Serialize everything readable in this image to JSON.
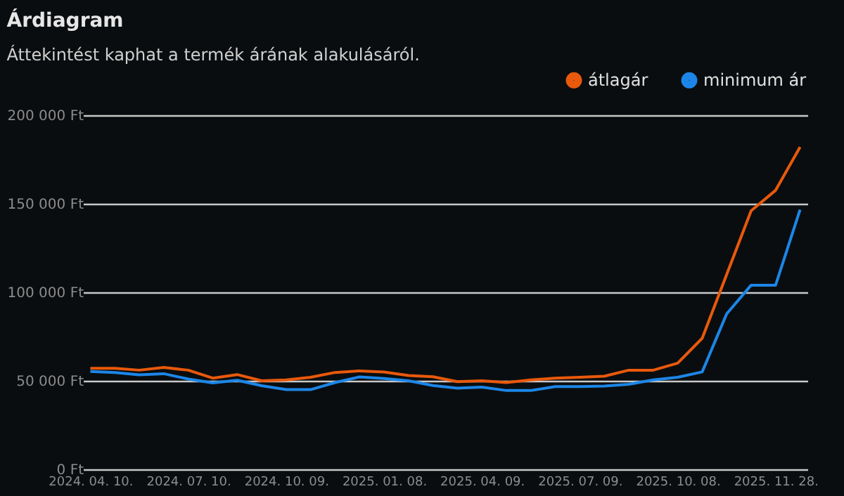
{
  "chart_data": {
    "type": "line",
    "title": "Árdiagram",
    "subtitle": "Áttekintést kaphat a termék árának alakulásáról.",
    "categories": [
      "2024. 04. 10.",
      null,
      null,
      null,
      "2024. 07. 10.",
      null,
      null,
      null,
      "2024. 10. 09.",
      null,
      null,
      null,
      "2025. 01. 08.",
      null,
      null,
      null,
      "2025. 04. 09.",
      null,
      null,
      null,
      "2025. 07. 09.",
      null,
      null,
      null,
      "2025. 10. 08.",
      null,
      null,
      null,
      "2025. 11. 28.",
      null
    ],
    "series": [
      {
        "name": "átlagár",
        "color": "#e8590c",
        "values": [
          57000,
          57000,
          56000,
          57500,
          56000,
          51500,
          53500,
          50000,
          50500,
          52000,
          54700,
          55600,
          55000,
          53000,
          52300,
          49500,
          50000,
          49000,
          50500,
          51500,
          52000,
          52600,
          56000,
          56000,
          60000,
          74000,
          110000,
          146000,
          157600,
          182000
        ]
      },
      {
        "name": "minimum ár",
        "color": "#1c86e8",
        "values": [
          55300,
          54700,
          53400,
          54000,
          51000,
          48800,
          50300,
          47200,
          45000,
          45000,
          49000,
          52200,
          51300,
          50000,
          47300,
          45800,
          46400,
          44500,
          44500,
          46700,
          46700,
          47000,
          48000,
          50500,
          52000,
          55000,
          87800,
          104000,
          104000,
          146700
        ]
      }
    ],
    "ylim": [
      0,
      200000
    ],
    "yticks": [
      {
        "value": 0,
        "label": "0 Ft"
      },
      {
        "value": 50000,
        "label": "50 000 Ft"
      },
      {
        "value": 100000,
        "label": "100 000 Ft"
      },
      {
        "value": 150000,
        "label": "150 000 Ft"
      },
      {
        "value": 200000,
        "label": "200 000 Ft"
      }
    ],
    "grid": "y",
    "legend": "top right",
    "marker": "none",
    "line_style": "solid"
  }
}
